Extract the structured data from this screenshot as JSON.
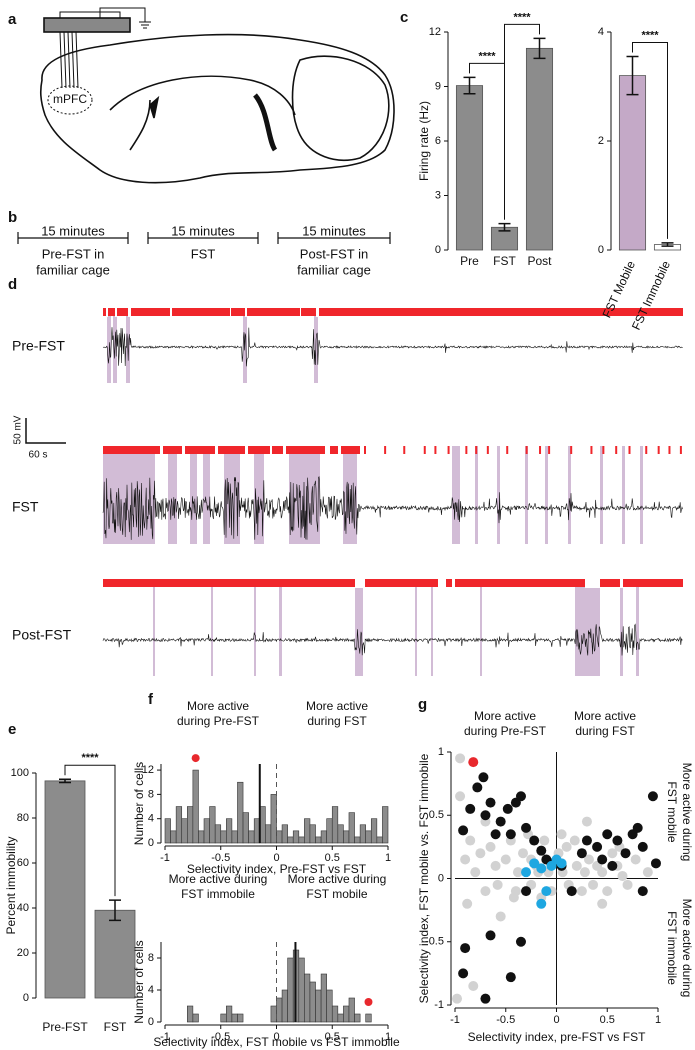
{
  "panel_labels": [
    "a",
    "b",
    "c",
    "d",
    "e",
    "f",
    "g"
  ],
  "panel_a": {
    "region_label": "mPFC"
  },
  "panel_b": {
    "durations": [
      "15 minutes",
      "15 minutes",
      "15 minutes"
    ],
    "phases": [
      [
        "Pre-FST in",
        "familiar cage"
      ],
      [
        "FST"
      ],
      [
        "Post-FST in",
        "familiar cage"
      ]
    ]
  },
  "panel_d": {
    "traces": [
      "Pre-FST",
      "FST",
      "Post-FST"
    ],
    "scale_y": "50 mV",
    "scale_x": "60 s"
  },
  "chart_data": [
    {
      "type": "bar",
      "ylabel": "Firing rate (Hz)",
      "categories": [
        "Pre",
        "FST",
        "Post"
      ],
      "values": [
        9.05,
        1.25,
        11.1
      ],
      "errors": [
        0.45,
        0.2,
        0.55
      ],
      "color": "#8c8c8c",
      "ylim": [
        0,
        12
      ],
      "yticks": [
        0,
        3,
        6,
        9,
        12
      ],
      "significance": [
        "****",
        "****"
      ]
    },
    {
      "type": "bar",
      "categories": [
        "FST Mobile",
        "FST Immobile"
      ],
      "values": [
        3.2,
        0.1
      ],
      "errors": [
        0.35,
        0.03
      ],
      "colors": [
        "#c4a9c7",
        "#ffffff"
      ],
      "ylim": [
        0,
        4
      ],
      "yticks": [
        0,
        2,
        4
      ],
      "significance": [
        "****"
      ]
    },
    {
      "type": "bar",
      "ylabel": "Percent immobility",
      "categories": [
        "Pre-FST",
        "FST"
      ],
      "values": [
        96.5,
        39
      ],
      "errors": [
        0.7,
        4.5
      ],
      "color": "#8c8c8c",
      "ylim": [
        0,
        100
      ],
      "yticks": [
        0,
        20,
        40,
        60,
        80,
        100
      ],
      "significance": [
        "****"
      ]
    },
    {
      "type": "histogram",
      "ylabel": "Number of cells",
      "xlabel": "Selectivity index, Pre-FST vs FST",
      "annotations": [
        [
          "More active",
          "during Pre-FST"
        ],
        [
          "More active",
          "during FST"
        ]
      ],
      "bins": [
        -1,
        -0.95,
        -0.9,
        -0.85,
        -0.8,
        -0.75,
        -0.7,
        -0.65,
        -0.6,
        -0.55,
        -0.5,
        -0.45,
        -0.4,
        -0.35,
        -0.3,
        -0.25,
        -0.2,
        -0.15,
        -0.1,
        -0.05,
        0,
        0.05,
        0.1,
        0.15,
        0.2,
        0.25,
        0.3,
        0.35,
        0.4,
        0.45,
        0.5,
        0.55,
        0.6,
        0.65,
        0.7,
        0.75,
        0.8,
        0.85,
        0.9,
        0.95,
        1
      ],
      "values": [
        4,
        2,
        6,
        4,
        6,
        12,
        2,
        4,
        6,
        3,
        2,
        4,
        2,
        10,
        5,
        2,
        4,
        6,
        3,
        8,
        2,
        3,
        1,
        2,
        1,
        4,
        3,
        1,
        2,
        4,
        6,
        3,
        2,
        5,
        1,
        3,
        2,
        4,
        1,
        6
      ],
      "color": "#8c8c8c",
      "mean": -0.15,
      "highlight_x": -0.725,
      "highlight_color": "#e8282d",
      "xlim": [
        -1,
        1
      ],
      "xticks": [
        -1,
        -0.5,
        0,
        0.5,
        1
      ],
      "ylim": [
        0,
        13
      ],
      "yticks": [
        0,
        4,
        8,
        12
      ]
    },
    {
      "type": "histogram",
      "ylabel": "Number of cells",
      "xlabel": "Selectivity index, FST mobile vs FST immobile",
      "annotations": [
        [
          "More active during",
          "FST immobile"
        ],
        [
          "More active during",
          "FST mobile"
        ]
      ],
      "bins": [
        -1,
        -0.95,
        -0.9,
        -0.85,
        -0.8,
        -0.75,
        -0.7,
        -0.65,
        -0.6,
        -0.55,
        -0.5,
        -0.45,
        -0.4,
        -0.35,
        -0.3,
        -0.25,
        -0.2,
        -0.15,
        -0.1,
        -0.05,
        0,
        0.05,
        0.1,
        0.15,
        0.2,
        0.25,
        0.3,
        0.35,
        0.4,
        0.45,
        0.5,
        0.55,
        0.6,
        0.65,
        0.7,
        0.75,
        0.8,
        0.85,
        0.9,
        0.95,
        1
      ],
      "values": [
        0,
        0,
        0,
        0,
        2,
        1,
        0,
        0,
        0,
        0,
        1,
        2,
        1,
        1,
        0,
        0,
        0,
        0,
        0,
        2,
        3,
        4,
        8,
        9,
        8,
        6,
        5,
        4,
        6,
        4,
        2,
        1,
        2,
        3,
        1,
        0,
        1,
        0,
        0,
        0
      ],
      "color": "#8c8c8c",
      "mean": 0.17,
      "highlight_x": 0.825,
      "highlight_color": "#e8282d",
      "xlim": [
        -1,
        1
      ],
      "xticks": [
        -1,
        -0.5,
        0,
        0.5,
        1
      ],
      "ylim": [
        0,
        10
      ],
      "yticks": [
        0,
        4,
        8
      ]
    },
    {
      "type": "scatter",
      "xlabel": "Selectivity index, pre-FST vs FST",
      "ylabel": "Selectivity index, FST mobile vs. FST immobile",
      "annotations": [
        [
          "More active",
          "during Pre-FST"
        ],
        [
          "More active",
          "during FST"
        ],
        [
          "More active during",
          "FST mobile"
        ],
        [
          "More active during",
          "FST immobile"
        ]
      ],
      "xlim": [
        -1,
        1
      ],
      "xticks": [
        -1,
        -0.5,
        0,
        0.5,
        1
      ],
      "ylim": [
        -1,
        1
      ],
      "yticks": [
        -1,
        -0.5,
        0,
        0.5,
        1
      ],
      "series": [
        {
          "color": "#d2d2d2",
          "x": [
            -0.95,
            -0.9,
            -0.85,
            -0.8,
            -0.75,
            -0.7,
            -0.65,
            -0.6,
            -0.58,
            -0.5,
            -0.45,
            -0.42,
            -0.38,
            -0.33,
            -0.28,
            -0.25,
            -0.2,
            -0.18,
            -0.12,
            -0.08,
            -0.05,
            0.02,
            0.06,
            0.1,
            0.12,
            0.18,
            0.2,
            0.25,
            0.28,
            0.32,
            0.36,
            0.4,
            0.45,
            0.5,
            0.55,
            0.6,
            0.65,
            0.7,
            0.78,
            0.9,
            -0.95,
            -0.88,
            -0.7,
            -0.55,
            -0.4,
            -0.25,
            -0.15,
            0.05,
            0.15,
            0.3,
            0.45,
            0.62,
            -0.98,
            -0.82
          ],
          "values": [
            0.95,
            0.15,
            0.3,
            0.05,
            0.2,
            -0.1,
            0.25,
            0.1,
            -0.05,
            0.15,
            0.3,
            -0.15,
            0.05,
            0.2,
            0.35,
            -0.05,
            0.1,
            0.05,
            0.3,
            0.05,
            -0.1,
            0.2,
            0.05,
            0.25,
            -0.05,
            0.3,
            0.1,
            -0.1,
            0.05,
            0.15,
            -0.05,
            0.1,
            0.05,
            -0.1,
            0.2,
            0.1,
            0.02,
            -0.05,
            0.15,
            0.05,
            0.65,
            -0.2,
            0.45,
            -0.3,
            -0.1,
            0.15,
            -0.15,
            0.35,
            -0.1,
            0.45,
            -0.2,
            0.25,
            -0.95,
            -0.85
          ]
        },
        {
          "color": "#111111",
          "x": [
            -0.92,
            -0.85,
            -0.78,
            -0.72,
            -0.7,
            -0.65,
            -0.6,
            -0.55,
            -0.48,
            -0.45,
            -0.4,
            -0.35,
            -0.3,
            -0.22,
            -0.15,
            -0.1,
            -0.05,
            0.05,
            0.15,
            0.25,
            0.3,
            0.4,
            0.45,
            0.5,
            0.55,
            0.6,
            0.68,
            0.75,
            0.8,
            0.85,
            0.95,
            0.98,
            -0.9,
            -0.92,
            -0.7,
            -0.65,
            -0.45,
            -0.3,
            -0.35,
            0.85
          ],
          "values": [
            0.38,
            0.55,
            0.72,
            0.8,
            0.5,
            0.6,
            0.35,
            0.45,
            0.55,
            0.35,
            0.6,
            0.65,
            0.4,
            0.3,
            0.22,
            0.15,
            0.12,
            0.1,
            -0.1,
            0.2,
            0.3,
            0.25,
            0.15,
            0.35,
            0.1,
            0.3,
            0.2,
            0.35,
            0.4,
            0.25,
            0.65,
            0.12,
            -0.55,
            -0.75,
            -0.95,
            -0.45,
            -0.78,
            -0.1,
            -0.5,
            -0.1
          ]
        },
        {
          "color": "#1ea7e1",
          "x": [
            -0.3,
            -0.22,
            -0.15,
            -0.1,
            -0.05,
            0,
            0.05,
            -0.15
          ],
          "values": [
            0.05,
            0.12,
            0.08,
            -0.1,
            0.1,
            0.15,
            0.12,
            -0.2
          ]
        },
        {
          "color": "#e8282d",
          "x": [
            -0.82
          ],
          "values": [
            0.92
          ]
        }
      ]
    }
  ]
}
